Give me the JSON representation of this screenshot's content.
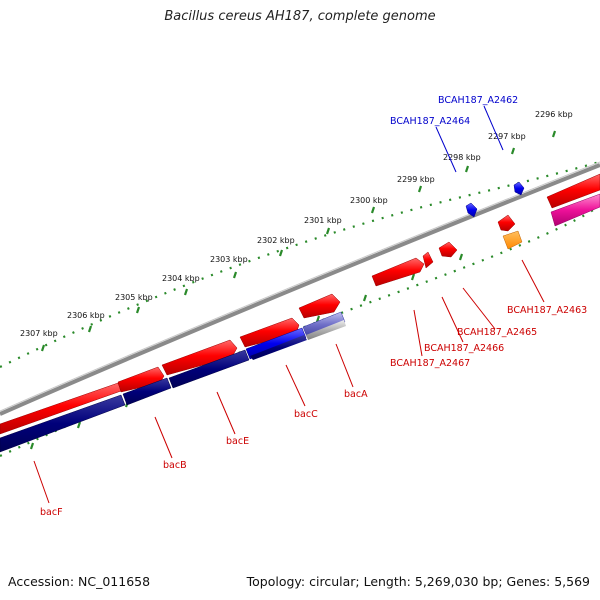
{
  "title": "Bacillus cereus AH187, complete genome",
  "footer": {
    "accession": "Accession: NC_011658",
    "stats": "Topology: circular; Length: 5,269,030 bp; Genes: 5,569"
  },
  "colors": {
    "backbone": "#808080",
    "scale": "#2a8a2a",
    "forward_gene": "#e00000",
    "reverse_gene": "#0000aa",
    "label_forward": "#cc0000",
    "label_reverse": "#0000cc"
  },
  "ticks": [
    {
      "kbp": 2296,
      "label": "2296 kbp"
    },
    {
      "kbp": 2297,
      "label": "2297 kbp"
    },
    {
      "kbp": 2298,
      "label": "2298 kbp"
    },
    {
      "kbp": 2299,
      "label": "2299 kbp"
    },
    {
      "kbp": 2300,
      "label": "2300 kbp"
    },
    {
      "kbp": 2301,
      "label": "2301 kbp"
    },
    {
      "kbp": 2302,
      "label": "2302 kbp"
    },
    {
      "kbp": 2303,
      "label": "2303 kbp"
    },
    {
      "kbp": 2304,
      "label": "2304 kbp"
    },
    {
      "kbp": 2305,
      "label": "2305 kbp"
    },
    {
      "kbp": 2306,
      "label": "2306 kbp"
    },
    {
      "kbp": 2307,
      "label": "2307 kbp"
    }
  ],
  "gene_labels": [
    {
      "id": "BCAH187_A2462",
      "text": "BCAH187_A2462",
      "strand": "reverse"
    },
    {
      "id": "BCAH187_A2464",
      "text": "BCAH187_A2464",
      "strand": "reverse"
    },
    {
      "id": "BCAH187_A2463",
      "text": "BCAH187_A2463",
      "strand": "forward"
    },
    {
      "id": "BCAH187_A2465",
      "text": "BCAH187_A2465",
      "strand": "forward"
    },
    {
      "id": "BCAH187_A2466",
      "text": "BCAH187_A2466",
      "strand": "forward"
    },
    {
      "id": "BCAH187_A2467",
      "text": "BCAH187_A2467",
      "strand": "forward"
    },
    {
      "id": "bacA",
      "text": "bacA",
      "strand": "forward"
    },
    {
      "id": "bacC",
      "text": "bacC",
      "strand": "forward"
    },
    {
      "id": "bacE",
      "text": "bacE",
      "strand": "forward"
    },
    {
      "id": "bacB",
      "text": "bacB",
      "strand": "forward"
    },
    {
      "id": "bacF",
      "text": "bacF",
      "strand": "forward"
    }
  ]
}
